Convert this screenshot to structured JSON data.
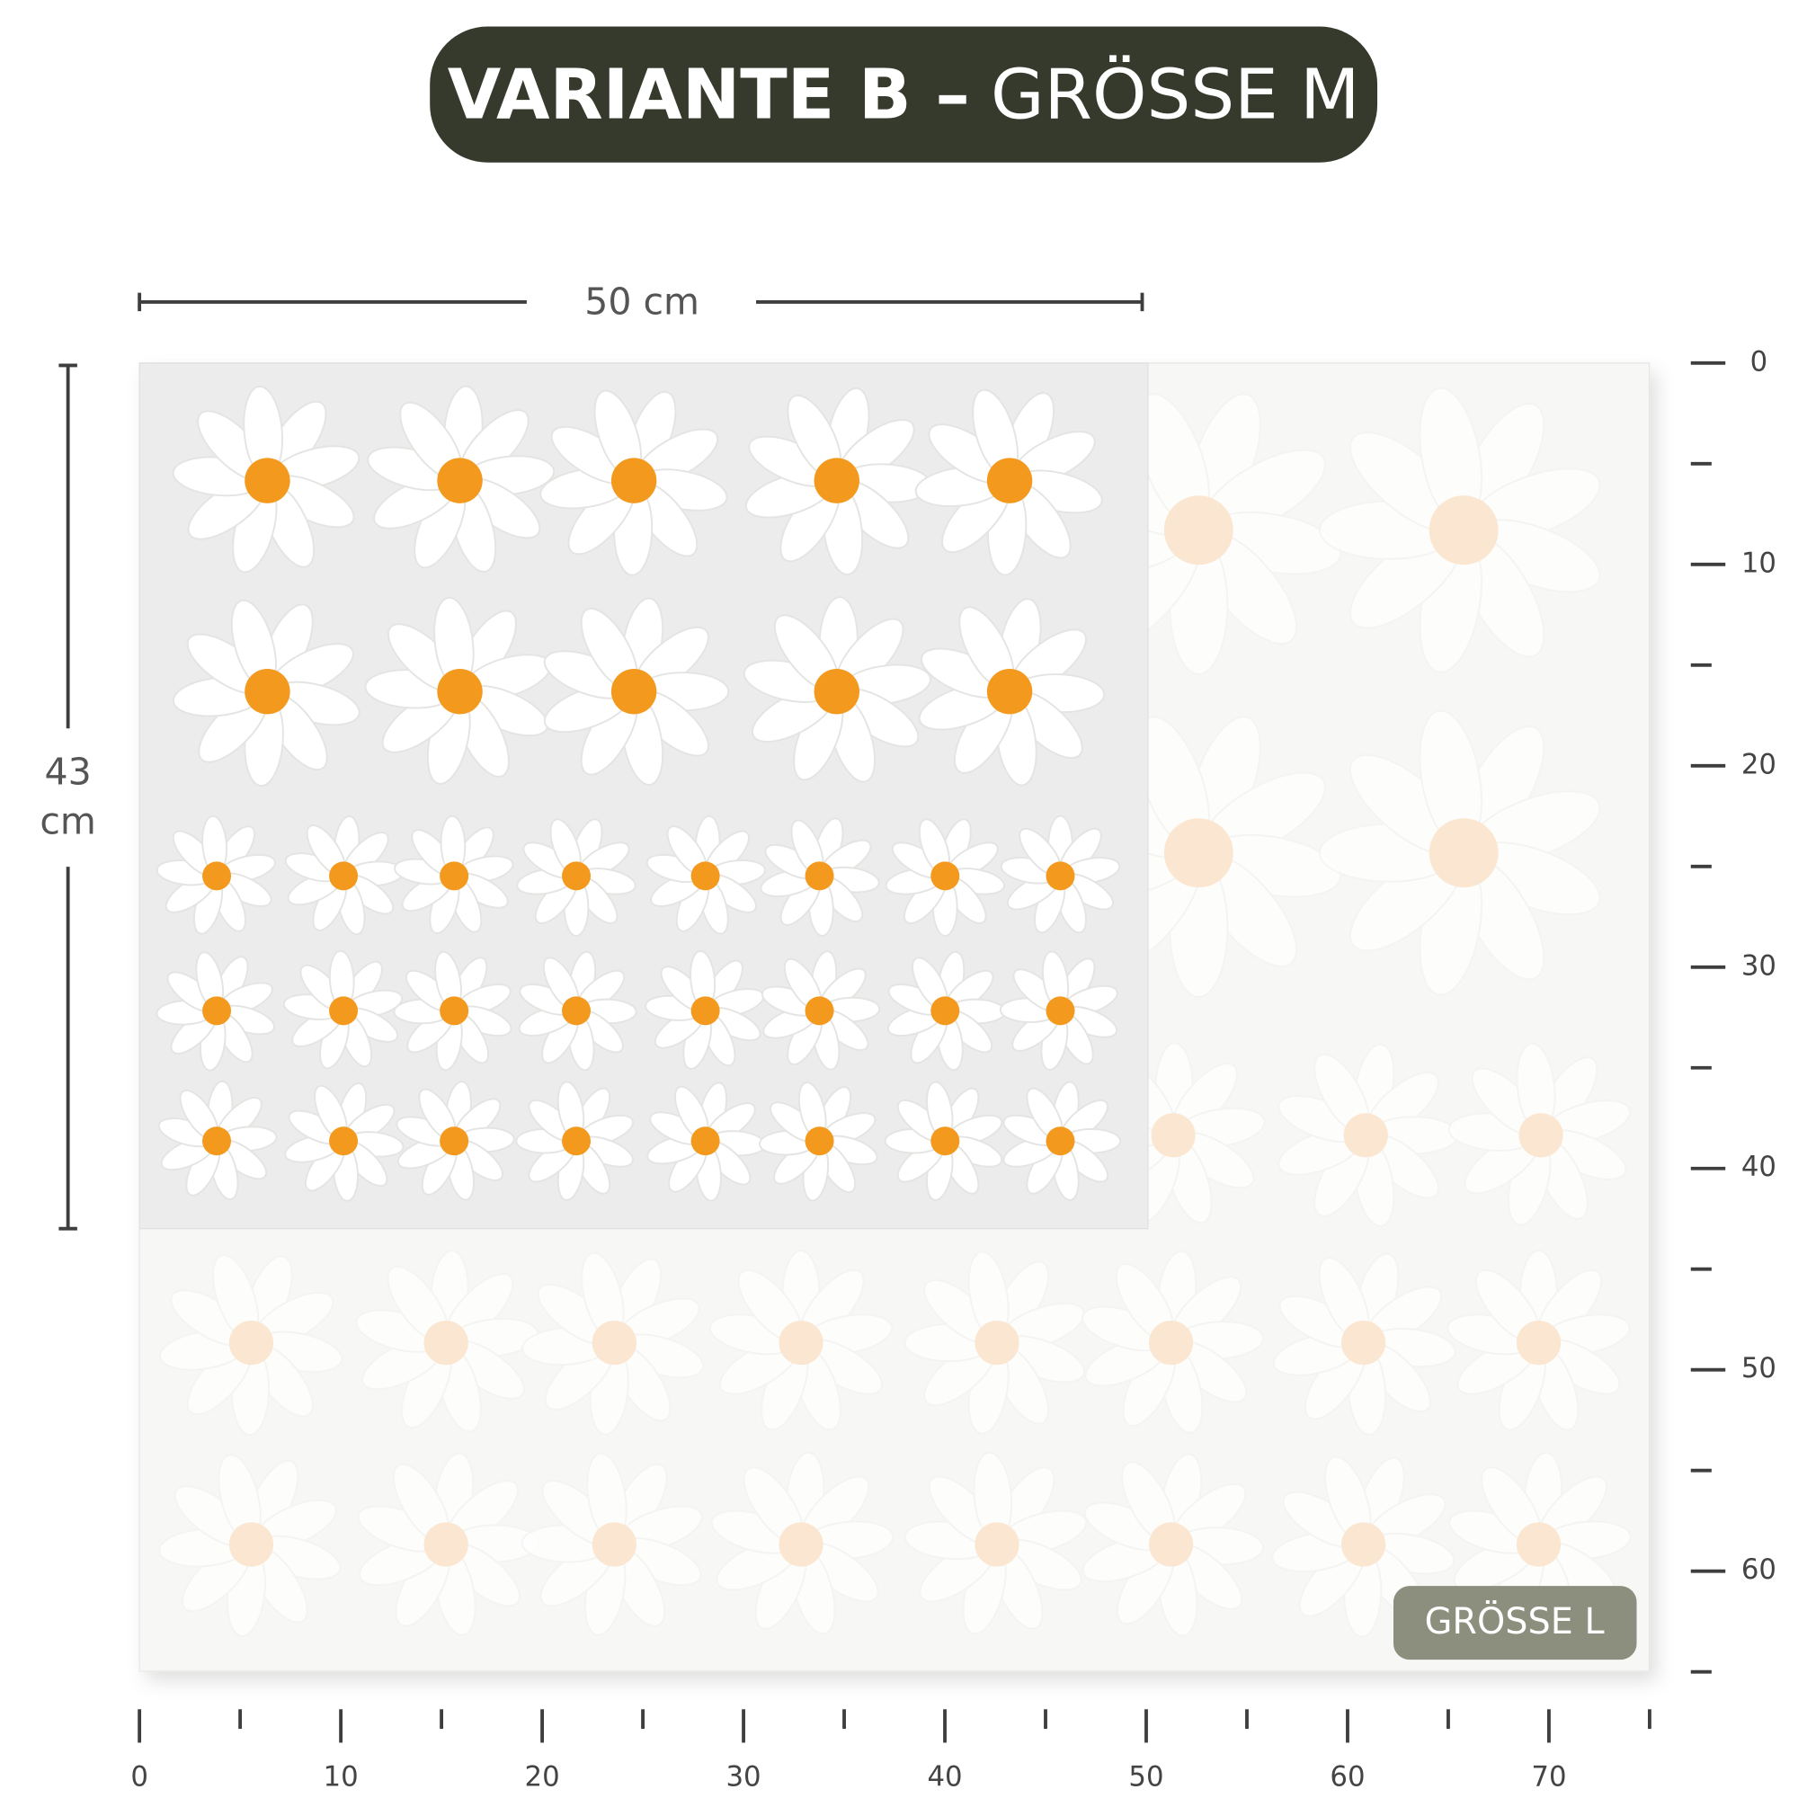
{
  "title": {
    "bold": "VARIANTE B –",
    "light": "GRÖSSE M"
  },
  "width_label": "50 cm",
  "height_label": [
    "43",
    "cm"
  ],
  "badge": "GRÖSSE L",
  "right_ruler": {
    "labels": [
      0,
      10,
      20,
      30,
      40,
      50,
      60
    ]
  },
  "bottom_ruler": {
    "labels": [
      0,
      10,
      20,
      30,
      40,
      50,
      60,
      70
    ]
  }
}
